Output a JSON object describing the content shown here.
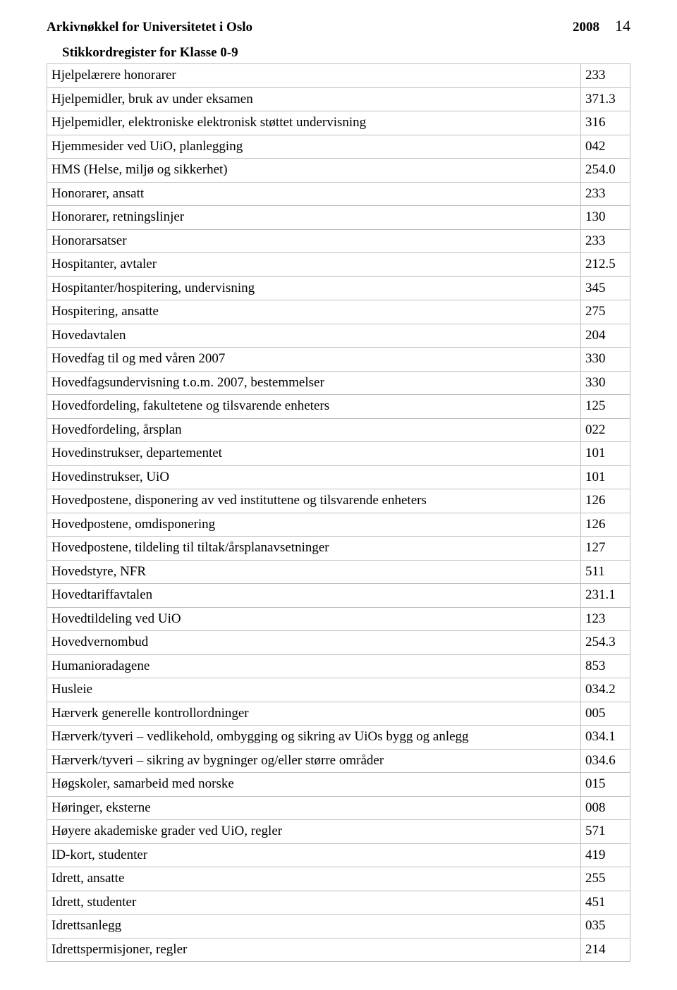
{
  "header": {
    "left": "Arkivnøkkel for Universitetet i Oslo",
    "year": "2008",
    "page": "14"
  },
  "subtitle": "Stikkordregister for Klasse 0-9",
  "border_color": "#bfbfbf",
  "text_color": "#000000",
  "font_family": "Times New Roman",
  "rows": [
    {
      "label": "Hjelpelærere honorarer",
      "code": "233"
    },
    {
      "label": "Hjelpemidler, bruk av under eksamen",
      "code": "371.3"
    },
    {
      "label": "Hjelpemidler, elektroniske elektronisk støttet undervisning",
      "code": "316"
    },
    {
      "label": "Hjemmesider ved UiO, planlegging",
      "code": "042"
    },
    {
      "label": "HMS (Helse, miljø og sikkerhet)",
      "code": "254.0"
    },
    {
      "label": "Honorarer, ansatt",
      "code": "233"
    },
    {
      "label": "Honorarer, retningslinjer",
      "code": "130"
    },
    {
      "label": "Honorarsatser",
      "code": "233"
    },
    {
      "label": "Hospitanter, avtaler",
      "code": "212.5"
    },
    {
      "label": "Hospitanter/hospitering, undervisning",
      "code": "345"
    },
    {
      "label": "Hospitering, ansatte",
      "code": "275"
    },
    {
      "label": "Hovedavtalen",
      "code": "204"
    },
    {
      "label": "Hovedfag til og med våren 2007",
      "code": "330"
    },
    {
      "label": "Hovedfagsundervisning t.o.m. 2007, bestemmelser",
      "code": "330"
    },
    {
      "label": "Hovedfordeling, fakultetene og tilsvarende enheters",
      "code": "125"
    },
    {
      "label": "Hovedfordeling, årsplan",
      "code": "022"
    },
    {
      "label": "Hovedinstrukser, departementet",
      "code": "101"
    },
    {
      "label": "Hovedinstrukser, UiO",
      "code": "101"
    },
    {
      "label": "Hovedpostene, disponering av ved instituttene og tilsvarende enheters",
      "code": "126"
    },
    {
      "label": "Hovedpostene, omdisponering",
      "code": "126"
    },
    {
      "label": "Hovedpostene, tildeling til tiltak/årsplanavsetninger",
      "code": "127"
    },
    {
      "label": "Hovedstyre, NFR",
      "code": "511"
    },
    {
      "label": "Hovedtariffavtalen",
      "code": "231.1"
    },
    {
      "label": "Hovedtildeling ved UiO",
      "code": "123"
    },
    {
      "label": "Hovedvernombud",
      "code": "254.3"
    },
    {
      "label": "Humanioradagene",
      "code": "853"
    },
    {
      "label": "Husleie",
      "code": "034.2"
    },
    {
      "label": "Hærverk generelle kontrollordninger",
      "code": "005"
    },
    {
      "label": "Hærverk/tyveri – vedlikehold, ombygging og sikring av UiOs bygg og anlegg",
      "code": "034.1"
    },
    {
      "label": "Hærverk/tyveri – sikring av bygninger og/eller større områder",
      "code": "034.6"
    },
    {
      "label": "Høgskoler, samarbeid med norske",
      "code": "015"
    },
    {
      "label": "Høringer, eksterne",
      "code": "008"
    },
    {
      "label": "Høyere akademiske grader ved UiO, regler",
      "code": "571"
    },
    {
      "label": "ID-kort, studenter",
      "code": "419"
    },
    {
      "label": "Idrett, ansatte",
      "code": "255"
    },
    {
      "label": "Idrett, studenter",
      "code": "451"
    },
    {
      "label": "Idrettsanlegg",
      "code": "035"
    },
    {
      "label": "Idrettspermisjoner, regler",
      "code": "214"
    }
  ]
}
